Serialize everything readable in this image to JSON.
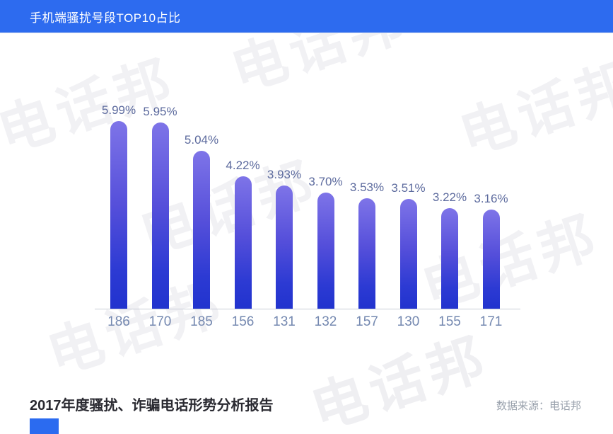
{
  "header": {
    "title": "手机端骚扰号段TOP10占比",
    "bg_color": "#2d6bef"
  },
  "chart_data": {
    "type": "bar",
    "title": "手机端骚扰号段TOP10占比",
    "categories": [
      "186",
      "170",
      "185",
      "156",
      "131",
      "132",
      "157",
      "130",
      "155",
      "171"
    ],
    "values": [
      5.99,
      5.95,
      5.04,
      4.22,
      3.93,
      3.7,
      3.53,
      3.51,
      3.22,
      3.16
    ],
    "value_labels": [
      "5.99%",
      "5.95%",
      "5.04%",
      "4.22%",
      "3.93%",
      "3.70%",
      "3.53%",
      "3.51%",
      "3.22%",
      "3.16%"
    ],
    "unit": "%",
    "xlabel": "",
    "ylabel": "",
    "ylim": [
      0,
      6.6
    ],
    "grid": false,
    "legend": null,
    "bar_gradient_top": "#7e74e8",
    "bar_gradient_bottom": "#2133ce",
    "value_label_color": "#5d6b9e",
    "tick_label_color": "#7488b0"
  },
  "watermark": {
    "text": "电话邦",
    "color": "#f1f1f4"
  },
  "footer": {
    "title": "2017年度骚扰、诈骗电话形势分析报告",
    "source": "数据来源：电话邦",
    "accent_color": "#2b6bf0"
  }
}
